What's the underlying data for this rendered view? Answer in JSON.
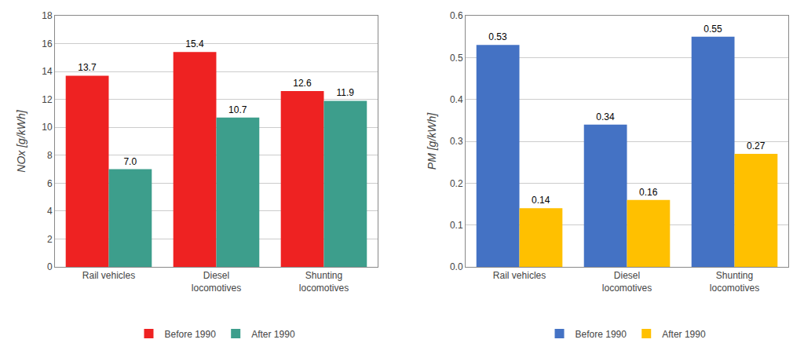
{
  "chart_data": [
    {
      "type": "bar",
      "categories": [
        "Rail vehicles",
        "Diesel\nlocomotives",
        "Shunting\nlocomotives"
      ],
      "series": [
        {
          "name": "Before 1990",
          "color": "#EE2222",
          "values": [
            13.7,
            15.4,
            12.6
          ],
          "value_labels": [
            "13.7",
            "15.4",
            "12.6"
          ]
        },
        {
          "name": "After 1990",
          "color": "#3D9E8C",
          "values": [
            7.0,
            10.7,
            11.9
          ],
          "value_labels": [
            "7.0",
            "10.7",
            "11.9"
          ]
        }
      ],
      "ylabel": "NOx [g/kWh]",
      "ylim": [
        0,
        18
      ],
      "yticks": [
        0,
        2,
        4,
        6,
        8,
        10,
        12,
        14,
        16,
        18
      ],
      "grid": true,
      "data_labels": true,
      "legend": "bottom"
    },
    {
      "type": "bar",
      "categories": [
        "Rail vehicles",
        "Diesel\nlocomotives",
        "Shunting\nlocomotives"
      ],
      "series": [
        {
          "name": "Before 1990",
          "color": "#4472C4",
          "values": [
            0.53,
            0.34,
            0.55
          ],
          "value_labels": [
            "0.53",
            "0.34",
            "0.55"
          ]
        },
        {
          "name": "After 1990",
          "color": "#FFC000",
          "values": [
            0.14,
            0.16,
            0.27
          ],
          "value_labels": [
            "0.14",
            "0.16",
            "0.27"
          ]
        }
      ],
      "ylabel": "PM [g/kWh]",
      "ylim": [
        0,
        0.6
      ],
      "yticks": [
        {
          "value": 0.0,
          "label": "0.0"
        },
        0.1,
        0.2,
        0.3,
        0.4,
        0.5,
        0.6
      ],
      "grid": true,
      "data_labels": true,
      "legend": "bottom"
    }
  ]
}
